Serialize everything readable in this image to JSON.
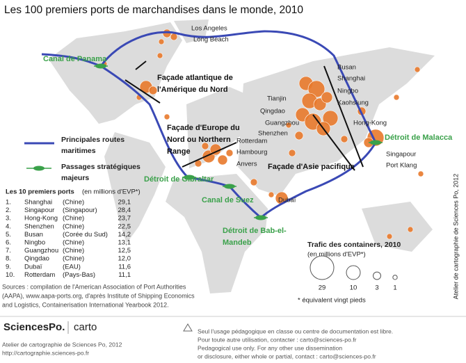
{
  "title": "Les 100 premiers ports de marchandises dans le monde, 2010",
  "ports": [
    "Los Angeles",
    "Long Beach",
    "Busan",
    "Shanghai",
    "Ningbo",
    "Kaohsiung",
    "Tianjin",
    "Qingdao",
    "Guangzhou",
    "Shenzhen",
    "Hong-Kong",
    "Singapour",
    "Port Klang",
    "Rotterdam",
    "Hambourg",
    "Anvers",
    "Dubaï"
  ],
  "passages": [
    [
      "Canal de Panama"
    ],
    [
      "Détroit de Malacca"
    ],
    [
      "Détroit de Gibraltar"
    ],
    [
      "Canal de Suez"
    ],
    [
      "Détroit de Bab-el-",
      "Mandeb"
    ]
  ],
  "facades": [
    [
      "Façade atlantique de",
      "l'Amérique du Nord"
    ],
    [
      "Façade d'Europe du",
      "Nord ou Northern",
      "Range"
    ],
    [
      "Façade d'Asie pacifique"
    ]
  ],
  "legend": {
    "routes": [
      "Principales routes",
      "maritimes"
    ],
    "passages": [
      "Passages stratégiques",
      "majeurs"
    ]
  },
  "table": {
    "title": "Les 10 premiers ports",
    "unit": "(en millions d'EVP*)",
    "rows": [
      [
        "1.",
        "Shanghai",
        "(Chine)",
        "29,1"
      ],
      [
        "2.",
        "Singapour",
        "(Singapour)",
        "28,4"
      ],
      [
        "3.",
        "Hong-Kong",
        "(Chine)",
        "23,7"
      ],
      [
        "4.",
        "Shenzhen",
        "(Chine)",
        "22,5"
      ],
      [
        "5.",
        "Busan",
        "(Corée du Sud)",
        "14,2"
      ],
      [
        "6.",
        "Ningbo",
        "(Chine)",
        "13,1"
      ],
      [
        "7.",
        "Guangzhou",
        "(Chine)",
        "12,5"
      ],
      [
        "8.",
        "Qingdao",
        "(Chine)",
        "12,0"
      ],
      [
        "9.",
        "Dubaï",
        "(EAU)",
        "11,6"
      ],
      [
        "10.",
        "Rotterdam",
        "(Pays-Bas)",
        "11,1"
      ]
    ]
  },
  "bubble_legend": {
    "title": "Trafic des containers, 2010",
    "unit": "(en millions d'EVP*)",
    "sizes": [
      29,
      10,
      3,
      1
    ],
    "note": "* équivalent vingt pieds"
  },
  "sources": [
    "Sources : compilation de l'American Association of Port Authorities",
    "(AAPA), www.aapa-ports.org, d'après Institute of Shipping Economics",
    "and Logistics, Containerisation International Yearbook 2012."
  ],
  "credit": "Atelier de cartographie de Sciences Po, 2012",
  "footer": {
    "logo": "SciencesPo.",
    "carto": "carto",
    "atelier": [
      "Atelier de cartographie de Sciences Po, 2012",
      "http://cartographie.sciences-po.fr"
    ],
    "usage": [
      "Seul l'usage pédagogique en classe ou centre de documentation est libre.",
      "Pour toute autre utilisation, contacter : carto@sciences-po.fr",
      "Pedagogical use only. For any other use dissemination",
      "or disclosure, either whole or partial, contact : carto@sciences-po.fr"
    ]
  }
}
